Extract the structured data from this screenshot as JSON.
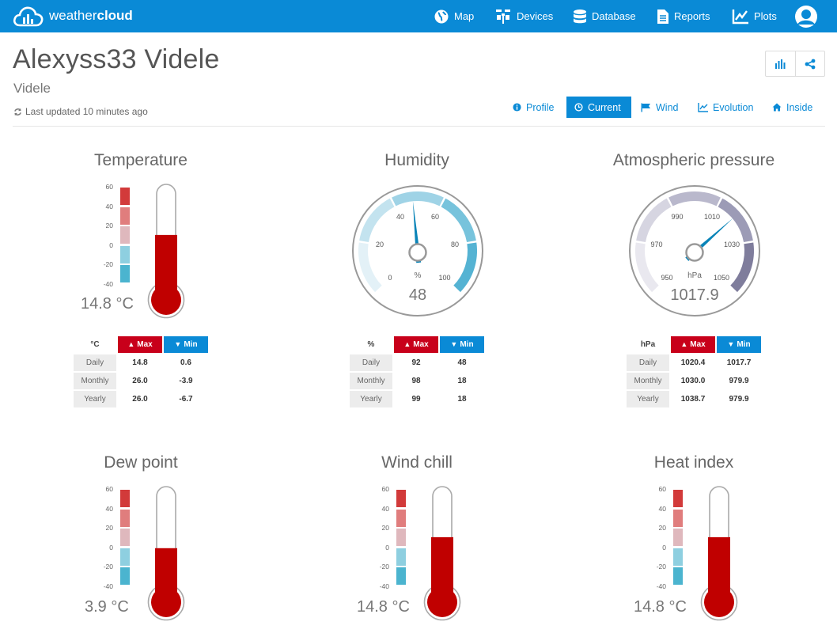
{
  "brand": {
    "word_light": "weather",
    "word_bold": "cloud"
  },
  "nav": [
    {
      "label": "Map",
      "icon": "globe-icon"
    },
    {
      "label": "Devices",
      "icon": "devices-icon"
    },
    {
      "label": "Database",
      "icon": "database-icon"
    },
    {
      "label": "Reports",
      "icon": "reports-icon"
    },
    {
      "label": "Plots",
      "icon": "plots-icon"
    }
  ],
  "header": {
    "title": "Alexyss33 Videle",
    "subtitle": "Videle",
    "updated": "Last updated 10 minutes ago"
  },
  "tabs": [
    {
      "label": "Profile",
      "icon": "info-icon",
      "active": false
    },
    {
      "label": "Current",
      "icon": "clock-icon",
      "active": true
    },
    {
      "label": "Wind",
      "icon": "flag-icon",
      "active": false
    },
    {
      "label": "Evolution",
      "icon": "line-chart-icon",
      "active": false
    },
    {
      "label": "Inside",
      "icon": "home-icon",
      "active": false
    }
  ],
  "scale_ticks": [
    "60",
    "40",
    "20",
    "0",
    "-20",
    "-40"
  ],
  "colors": {
    "accent": "#0a8ad6",
    "max": "#c8001a",
    "min": "#0a8ad6",
    "mercury": "#c00000"
  },
  "stats_labels": {
    "max": "Max",
    "min": "Min",
    "daily": "Daily",
    "monthly": "Monthly",
    "yearly": "Yearly"
  },
  "temperature": {
    "title": "Temperature",
    "value": "14.8 °C",
    "reading": 14.8,
    "unit": "°C",
    "daily": [
      "14.8",
      "0.6"
    ],
    "monthly": [
      "26.0",
      "-3.9"
    ],
    "yearly": [
      "26.0",
      "-6.7"
    ]
  },
  "humidity": {
    "title": "Humidity",
    "value": "48",
    "reading": 48,
    "unit": "%",
    "unit_label": "%",
    "scale": [
      "0",
      "20",
      "40",
      "60",
      "80",
      "100"
    ],
    "daily": [
      "92",
      "48"
    ],
    "monthly": [
      "98",
      "18"
    ],
    "yearly": [
      "99",
      "18"
    ]
  },
  "pressure": {
    "title": "Atmospheric pressure",
    "value": "1017.9",
    "reading": 1017.9,
    "unit": "hPa",
    "unit_label": "hPa",
    "scale": [
      "950",
      "970",
      "990",
      "1010",
      "1030",
      "1050"
    ],
    "daily": [
      "1020.4",
      "1017.7"
    ],
    "monthly": [
      "1030.0",
      "979.9"
    ],
    "yearly": [
      "1038.7",
      "979.9"
    ]
  },
  "dew_point": {
    "title": "Dew point",
    "value": "3.9 °C",
    "reading": 3.9
  },
  "wind_chill": {
    "title": "Wind chill",
    "value": "14.8 °C",
    "reading": 14.8
  },
  "heat_index": {
    "title": "Heat index",
    "value": "14.8 °C",
    "reading": 14.8
  }
}
